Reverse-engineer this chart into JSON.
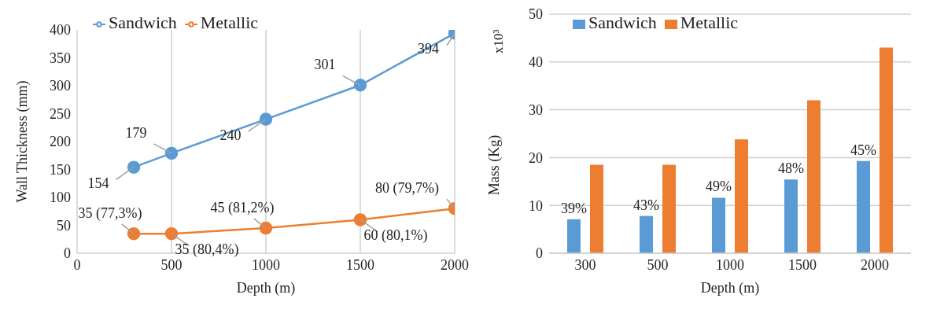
{
  "chart_data": [
    {
      "type": "line",
      "xlabel": "Depth (m)",
      "ylabel": "Wall Thickness (mm)",
      "x": [
        300,
        500,
        1000,
        1500,
        2000
      ],
      "xlim": [
        0,
        2000
      ],
      "xticks": [
        0,
        500,
        1000,
        1500,
        2000
      ],
      "ylim": [
        0,
        400
      ],
      "yticks": [
        0,
        50,
        100,
        150,
        200,
        250,
        300,
        350,
        400
      ],
      "grid": "x",
      "legend": "top left",
      "marker": "circle",
      "series": [
        {
          "name": "Sandwich",
          "color": "#5b9bd5",
          "values": [
            154,
            179,
            240,
            301,
            394
          ],
          "value_labels": [
            "154",
            "179",
            "240",
            "301",
            "394"
          ]
        },
        {
          "name": "Metallic",
          "color": "#ed7d31",
          "values": [
            35,
            35,
            45,
            60,
            80
          ],
          "value_labels": [
            "35 (77,3%)",
            "35 (80,4%)",
            "45 (81,2%)",
            "60 (80,1%)",
            "80 (79,7%)"
          ]
        }
      ]
    },
    {
      "type": "bar",
      "xlabel": "Depth (m)",
      "ylabel": "Mass (Kg)",
      "annotations": [
        "x10³",
        "39%",
        "43%",
        "49%",
        "48%",
        "45%"
      ],
      "categories": [
        "300",
        "500",
        "1000",
        "1500",
        "2000"
      ],
      "ylim": [
        0,
        50
      ],
      "yticks": [
        0,
        10,
        20,
        30,
        40,
        50
      ],
      "grid": "y",
      "legend": "top left",
      "series": [
        {
          "name": "Sandwich",
          "color": "#5b9bd5",
          "values": [
            7.1,
            7.8,
            11.6,
            15.4,
            19.3
          ]
        },
        {
          "name": "Metallic",
          "color": "#ed7d31",
          "values": [
            18.5,
            18.5,
            23.8,
            32.0,
            43.0
          ]
        }
      ]
    }
  ]
}
